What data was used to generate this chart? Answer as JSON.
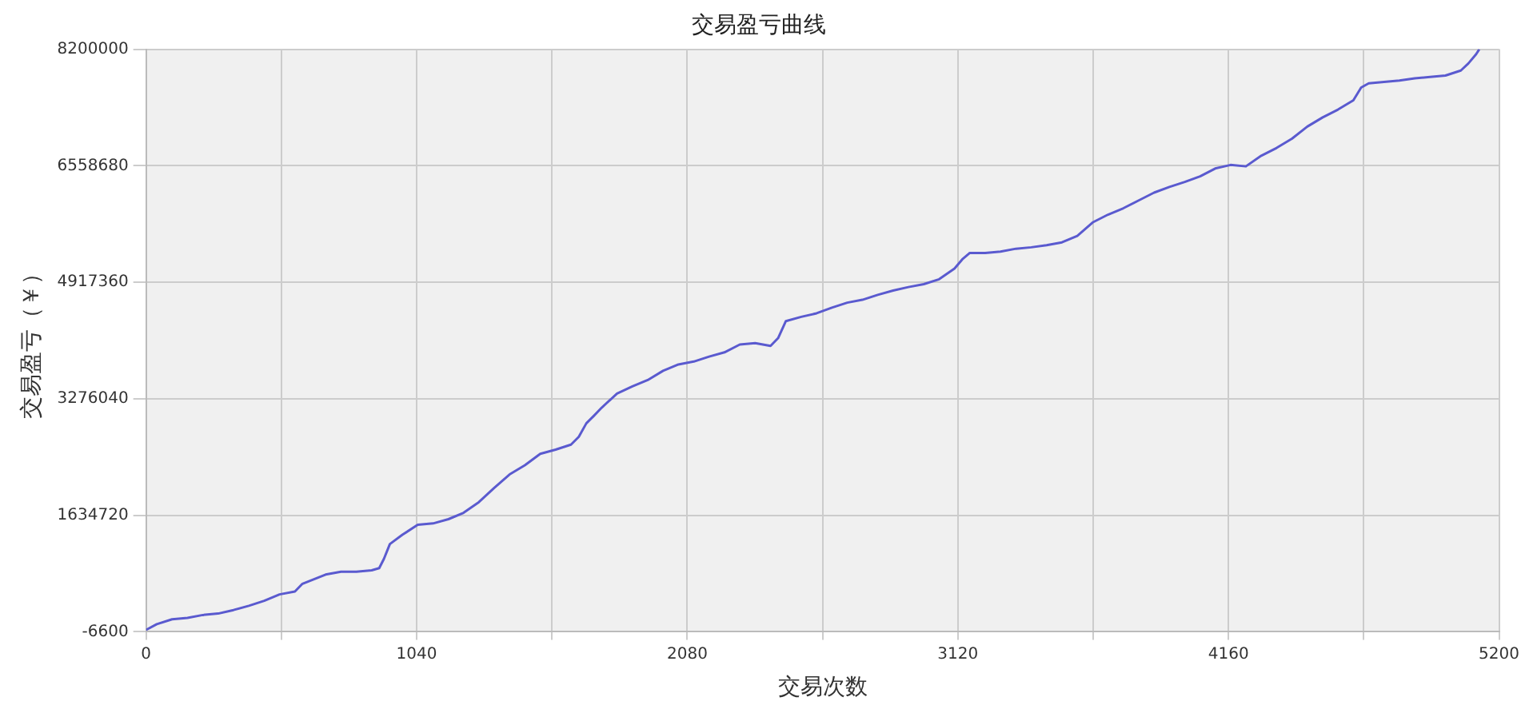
{
  "chart_data": {
    "type": "line",
    "title": "交易盈亏曲线",
    "xlabel": "交易次数",
    "ylabel": "交易盈亏（￥）",
    "xlim": [
      0,
      5200
    ],
    "xticks": [
      0,
      {
        "value": 520,
        "label": null
      },
      1040,
      {
        "value": 1560,
        "label": null
      },
      2080,
      {
        "value": 2600,
        "label": null
      },
      3120,
      {
        "value": 3640,
        "label": null
      },
      4160,
      {
        "value": 4680,
        "label": null
      },
      5200
    ],
    "ylim": [
      -6600,
      8200000
    ],
    "yticks": [
      -6600,
      1634720,
      3276040,
      4917360,
      6558680,
      8200000
    ],
    "grid": true,
    "legend": false,
    "marker": "none",
    "line_style": "solid",
    "series": [
      {
        "color": "#5a5acf",
        "x": [
          0,
          41,
          100,
          159,
          218,
          277,
          336,
          395,
          454,
          513,
          572,
          601,
          690,
          749,
          808,
          867,
          896,
          914,
          937,
          985,
          1044,
          1103,
          1162,
          1220,
          1279,
          1338,
          1397,
          1456,
          1515,
          1574,
          1633,
          1663,
          1692,
          1722,
          1751,
          1810,
          1869,
          1928,
          1987,
          2046,
          2105,
          2164,
          2223,
          2282,
          2341,
          2400,
          2429,
          2459,
          2518,
          2577,
          2636,
          2695,
          2753,
          2812,
          2871,
          2930,
          2989,
          3048,
          3107,
          3137,
          3166,
          3225,
          3284,
          3343,
          3402,
          3461,
          3520,
          3579,
          3638,
          3697,
          3756,
          3815,
          3874,
          3933,
          3992,
          4051,
          4109,
          4168,
          4227,
          4286,
          4345,
          4404,
          4463,
          4522,
          4581,
          4640,
          4670,
          4699,
          4758,
          4817,
          4876,
          4935,
          4994,
          5053,
          5082,
          5112,
          5124
        ],
        "values": [
          20000,
          100000,
          170000,
          190000,
          230000,
          250000,
          300000,
          360000,
          430000,
          520000,
          560000,
          670000,
          800000,
          840000,
          840000,
          860000,
          890000,
          1020000,
          1230000,
          1360000,
          1500000,
          1520000,
          1580000,
          1670000,
          1820000,
          2020000,
          2210000,
          2340000,
          2500000,
          2560000,
          2630000,
          2740000,
          2930000,
          3040000,
          3150000,
          3350000,
          3450000,
          3540000,
          3670000,
          3760000,
          3800000,
          3870000,
          3930000,
          4040000,
          4060000,
          4020000,
          4130000,
          4370000,
          4430000,
          4480000,
          4560000,
          4630000,
          4670000,
          4740000,
          4800000,
          4850000,
          4890000,
          4960000,
          5110000,
          5240000,
          5330000,
          5330000,
          5350000,
          5390000,
          5410000,
          5440000,
          5480000,
          5570000,
          5760000,
          5870000,
          5960000,
          6070000,
          6180000,
          6260000,
          6330000,
          6410000,
          6520000,
          6570000,
          6550000,
          6700000,
          6810000,
          6940000,
          7110000,
          7240000,
          7350000,
          7480000,
          7660000,
          7720000,
          7740000,
          7760000,
          7790000,
          7810000,
          7830000,
          7900000,
          8000000,
          8130000,
          8200000
        ]
      }
    ]
  }
}
